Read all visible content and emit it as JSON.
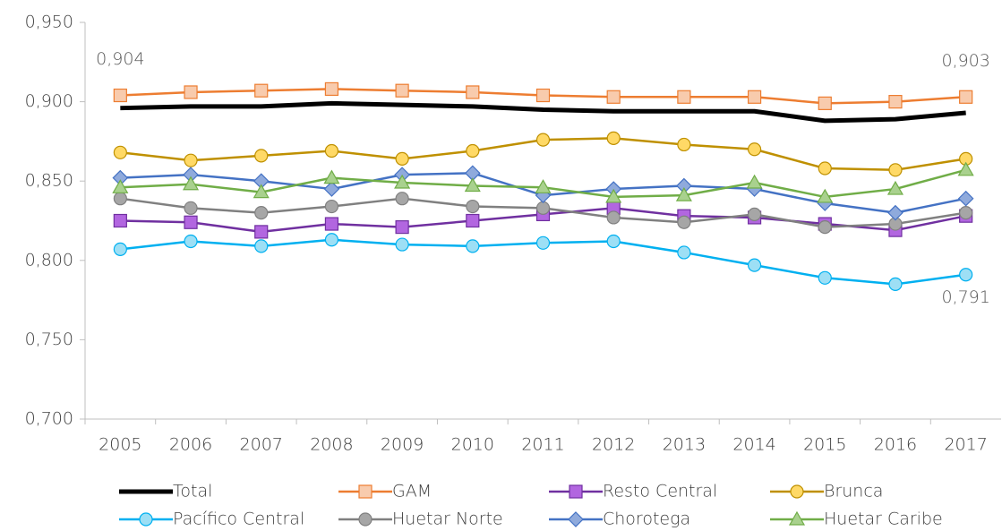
{
  "chart_data": {
    "type": "line",
    "categories": [
      "2005",
      "2006",
      "2007",
      "2008",
      "2009",
      "2010",
      "2011",
      "2012",
      "2013",
      "2014",
      "2015",
      "2016",
      "2017"
    ],
    "ylim": [
      0.7,
      0.95
    ],
    "yticks": [
      {
        "value": 0.7,
        "label": "0,700"
      },
      {
        "value": 0.75,
        "label": "0,750"
      },
      {
        "value": 0.8,
        "label": "0,800"
      },
      {
        "value": 0.85,
        "label": "0,850"
      },
      {
        "value": 0.9,
        "label": "0,900"
      },
      {
        "value": 0.95,
        "label": "0,950"
      }
    ],
    "grid": false,
    "legend": "bottom",
    "series": [
      {
        "name": "Total",
        "color": "#000000",
        "marker": "none",
        "line_width": 5,
        "values": [
          0.896,
          0.897,
          0.897,
          0.899,
          0.898,
          0.897,
          0.895,
          0.894,
          0.894,
          0.894,
          0.888,
          0.889,
          0.893
        ]
      },
      {
        "name": "GAM",
        "color": "#ed7d31",
        "marker": "square",
        "marker_fill": "#f8cbad",
        "line_width": 2.5,
        "values": [
          0.904,
          0.906,
          0.907,
          0.908,
          0.907,
          0.906,
          0.904,
          0.903,
          0.903,
          0.903,
          0.899,
          0.9,
          0.903
        ],
        "value_labels": [
          "0,904",
          null,
          null,
          null,
          null,
          null,
          null,
          null,
          null,
          null,
          null,
          null,
          "0,903"
        ],
        "label_position": "above"
      },
      {
        "name": "Resto Central",
        "color": "#7030a0",
        "marker": "square",
        "marker_fill": "#b266e0",
        "line_width": 2.5,
        "values": [
          0.825,
          0.824,
          0.818,
          0.823,
          0.821,
          0.825,
          0.829,
          0.833,
          0.828,
          0.827,
          0.823,
          0.819,
          0.828
        ]
      },
      {
        "name": "Brunca",
        "color": "#bf9000",
        "marker": "circle",
        "marker_fill": "#ffd966",
        "line_width": 2.5,
        "values": [
          0.868,
          0.863,
          0.866,
          0.869,
          0.864,
          0.869,
          0.876,
          0.877,
          0.873,
          0.87,
          0.858,
          0.857,
          0.864
        ]
      },
      {
        "name": "Pacífico Central",
        "color": "#00b0f0",
        "marker": "circle",
        "marker_fill": "#9ddff5",
        "line_width": 2.5,
        "values": [
          0.807,
          0.812,
          0.809,
          0.813,
          0.81,
          0.809,
          0.811,
          0.812,
          0.805,
          0.797,
          0.789,
          0.785,
          0.791
        ],
        "value_labels": [
          null,
          null,
          null,
          null,
          null,
          null,
          null,
          null,
          null,
          null,
          null,
          null,
          "0,791"
        ],
        "label_position": "below"
      },
      {
        "name": "Huetar Norte",
        "color": "#808080",
        "marker": "circle",
        "marker_fill": "#a6a6a6",
        "line_width": 2.5,
        "values": [
          0.839,
          0.833,
          0.83,
          0.834,
          0.839,
          0.834,
          0.833,
          0.827,
          0.824,
          0.829,
          0.821,
          0.823,
          0.83
        ]
      },
      {
        "name": "Chorotega",
        "color": "#4472c4",
        "marker": "diamond",
        "marker_fill": "#8faadc",
        "line_width": 2.5,
        "values": [
          0.852,
          0.854,
          0.85,
          0.845,
          0.854,
          0.855,
          0.841,
          0.845,
          0.847,
          0.845,
          0.836,
          0.83,
          0.839
        ]
      },
      {
        "name": "Huetar Caribe",
        "color": "#70ad47",
        "marker": "triangle",
        "marker_fill": "#a9d18e",
        "line_width": 2.5,
        "values": [
          0.846,
          0.848,
          0.843,
          0.852,
          0.849,
          0.847,
          0.846,
          0.84,
          0.841,
          0.849,
          0.84,
          0.845,
          0.857
        ]
      }
    ]
  }
}
